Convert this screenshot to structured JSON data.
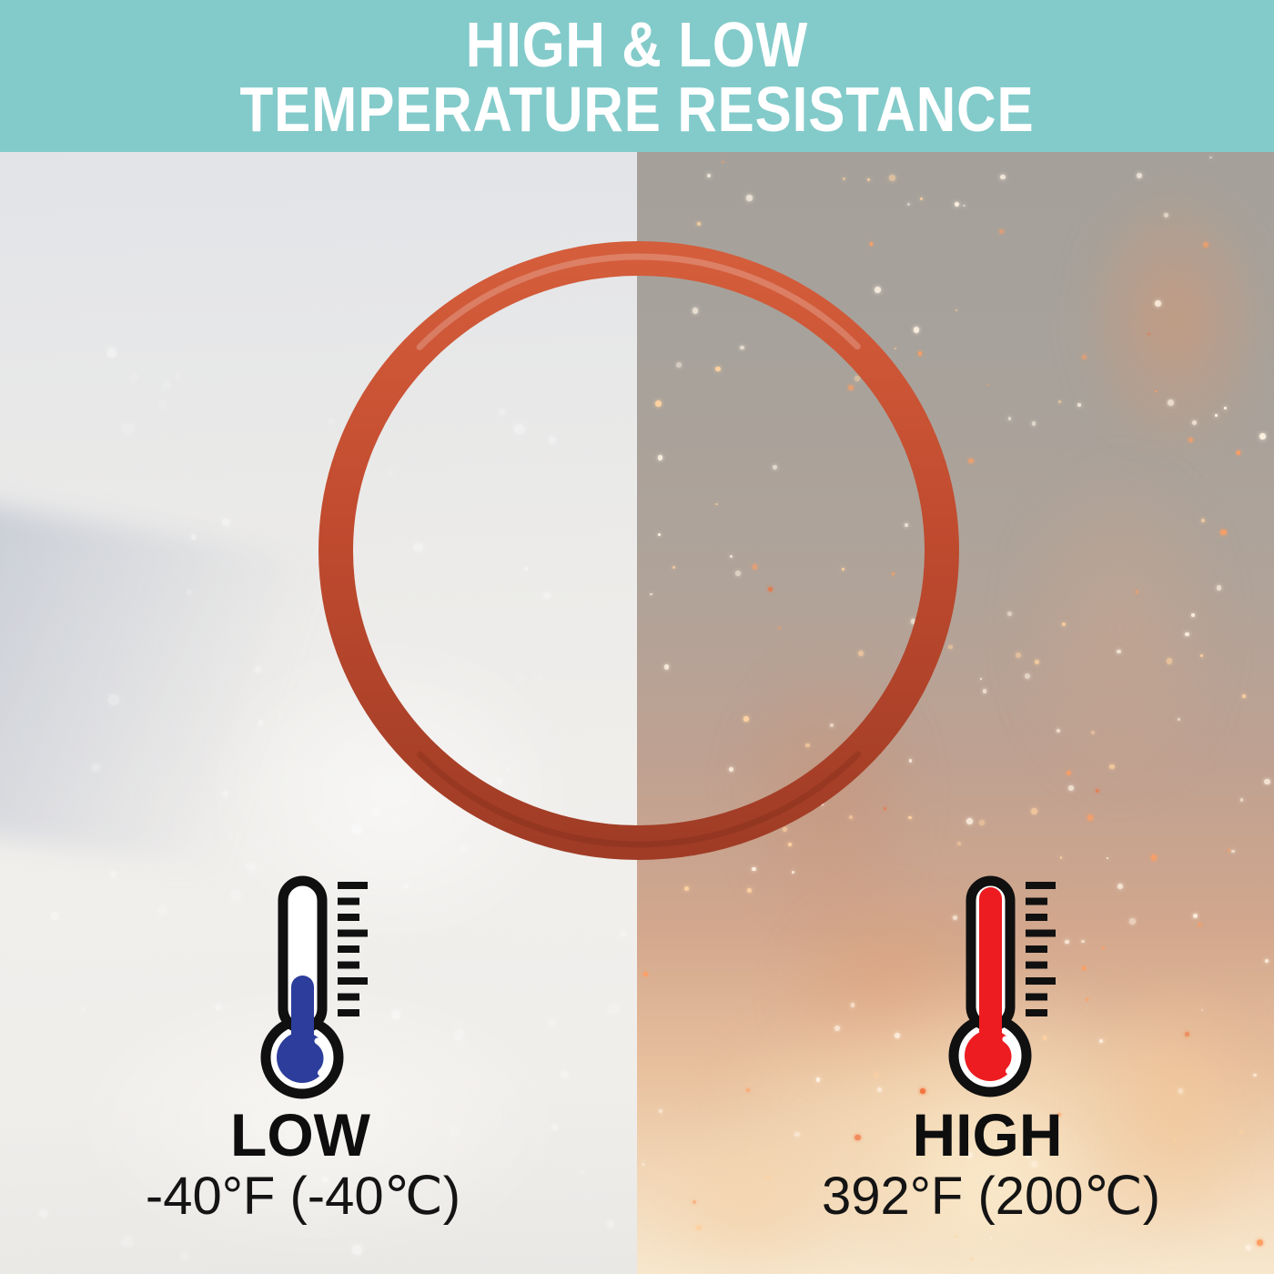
{
  "header": {
    "line1": "HIGH & LOW",
    "line2": "TEMPERATURE RESISTANCE",
    "background_color": "#83cbca",
    "text_color": "#ffffff"
  },
  "oring": {
    "label": "silicone o-ring",
    "color_main": "#c14b2f",
    "color_highlight": "#d45d3b",
    "color_shadow": "#a03c26"
  },
  "low": {
    "label": "LOW",
    "temperature": "-40°F (-40℃)",
    "mercury_color": "#2c3d9c",
    "background": "snow"
  },
  "high": {
    "label": "HIGH",
    "temperature": "392°F (200℃)",
    "mercury_color": "#ec1c21",
    "background": "fire"
  }
}
